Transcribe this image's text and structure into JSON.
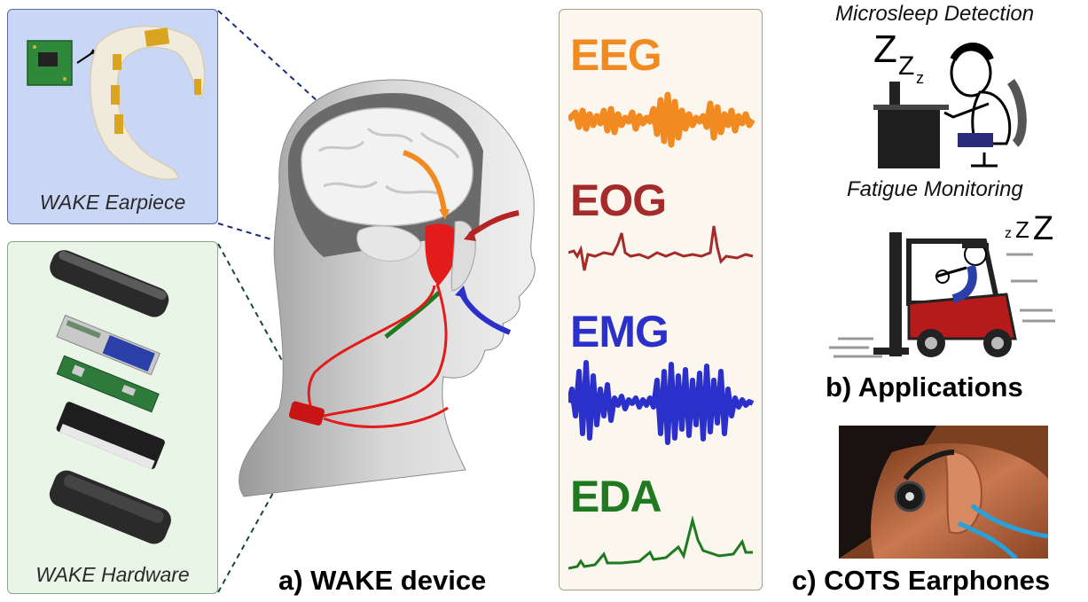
{
  "earpiece_panel": {
    "caption": "WAKE Earpiece"
  },
  "hardware_panel": {
    "caption": "WAKE Hardware"
  },
  "signals": [
    {
      "label": "EEG",
      "color": "#f28a22"
    },
    {
      "label": "EOG",
      "color": "#a52a2a"
    },
    {
      "label": "EMG",
      "color": "#2a30c9"
    },
    {
      "label": "EDA",
      "color": "#1f7a1f"
    }
  ],
  "applications": {
    "microsleep_caption": "Microsleep Detection",
    "fatigue_caption": "Fatigue Monitoring",
    "heading": "b) Applications",
    "zzz_top": "Z",
    "zzz_top_2": "Z",
    "zzz_top_3": "z",
    "zzz_mid_1": "z",
    "zzz_mid_2": "Z",
    "zzz_mid_3": "Z"
  },
  "wake_device_caption": "a) WAKE device",
  "cots_caption": "c) COTS Earphones"
}
